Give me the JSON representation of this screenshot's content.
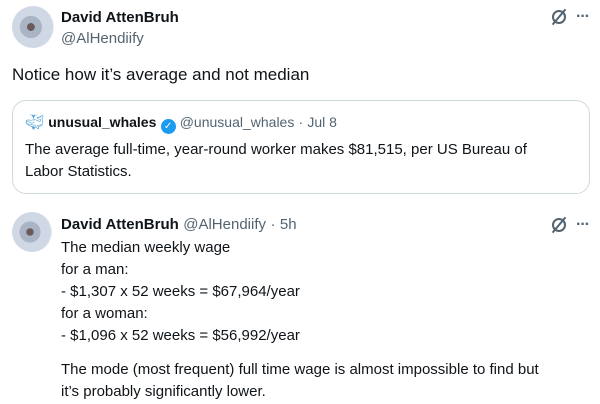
{
  "main_tweet": {
    "author_name": "David AttenBruh",
    "author_handle": "@AlHendiify",
    "text": "Notice how it’s average and not median",
    "icons": [
      "grok-icon",
      "more-icon"
    ]
  },
  "quoted_tweet": {
    "author_name": "unusual_whales",
    "author_handle": "@unusual_whales",
    "separator": "·",
    "date": "Jul 8",
    "verified": true,
    "text": "The average full-time, year-round worker makes $81,515, per US Bureau of Labor Statistics.",
    "colors": {
      "verified": "#1d9bf0"
    }
  },
  "reply_tweet": {
    "author_name": "David AttenBruh",
    "author_handle": "@AlHendiify",
    "separator": "·",
    "time": "5h",
    "lines": [
      "The median weekly wage",
      "for a man:",
      "- $1,307 x 52 weeks = $67,964/year",
      "for a woman:",
      "- $1,096 x 52 weeks = $56,992/year",
      "",
      "The mode (most frequent) full time wage is almost impossible to find but",
      "it’s probably significantly lower."
    ]
  },
  "more_symbol": "···"
}
